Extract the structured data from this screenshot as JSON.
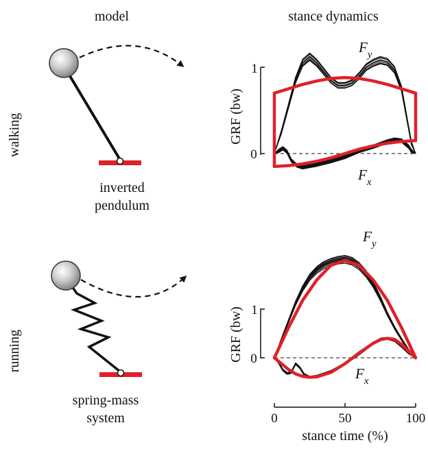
{
  "headers": {
    "model": "model",
    "dynamics": "stance dynamics"
  },
  "rows": {
    "walking": {
      "label": "walking",
      "model_line1": "inverted",
      "model_line2": "pendulum"
    },
    "running": {
      "label": "running",
      "model_line1": "spring-mass",
      "model_line2": "system"
    }
  },
  "axes": {
    "ylabel": "GRF (bw)",
    "xlabel": "stance time (%)",
    "x_ticks": [
      "0",
      "50",
      "100"
    ],
    "y_ticks": [
      "0",
      "1"
    ]
  },
  "force_labels": {
    "fy_main": "F",
    "fy_sub": "y",
    "fx_main": "F",
    "fx_sub": "x"
  },
  "colors": {
    "model_fit": "#e0202a",
    "measured": "#111111",
    "ground": "#e0202a"
  },
  "chart_data": [
    {
      "type": "line",
      "panel": "walking",
      "xlim": [
        0,
        100
      ],
      "ylim": [
        -0.2,
        1.2
      ],
      "series": [
        {
          "role": "measured-Fy",
          "x": [
            0,
            5,
            10,
            15,
            20,
            25,
            30,
            35,
            40,
            45,
            50,
            55,
            60,
            65,
            70,
            75,
            80,
            85,
            90,
            95,
            97,
            100
          ],
          "y": [
            0,
            0.25,
            0.55,
            0.85,
            1.05,
            1.12,
            1.05,
            0.95,
            0.85,
            0.79,
            0.79,
            0.82,
            0.9,
            1.0,
            1.05,
            1.08,
            1.06,
            0.97,
            0.75,
            0.3,
            0.12,
            0
          ]
        },
        {
          "role": "measured-Fx",
          "x": [
            0,
            3,
            6,
            9,
            12,
            16,
            20,
            30,
            40,
            50,
            60,
            70,
            80,
            85,
            90,
            95,
            97,
            100
          ],
          "y": [
            0,
            0.03,
            0.06,
            0.02,
            -0.08,
            -0.14,
            -0.16,
            -0.13,
            -0.09,
            -0.04,
            0.03,
            0.08,
            0.14,
            0.16,
            0.15,
            0.08,
            0.03,
            0
          ]
        },
        {
          "role": "model-Fy",
          "x": [
            0,
            10,
            20,
            30,
            40,
            50,
            60,
            70,
            80,
            90,
            100
          ],
          "y": [
            0.7,
            0.75,
            0.8,
            0.84,
            0.87,
            0.88,
            0.87,
            0.84,
            0.8,
            0.75,
            0.7
          ]
        },
        {
          "role": "model-Fx",
          "x": [
            0,
            10,
            20,
            30,
            40,
            50,
            60,
            70,
            80,
            90,
            100
          ],
          "y": [
            -0.15,
            -0.14,
            -0.12,
            -0.09,
            -0.05,
            0,
            0.05,
            0.09,
            0.12,
            0.14,
            0.15
          ]
        }
      ]
    },
    {
      "type": "line",
      "panel": "running",
      "xlim": [
        0,
        100
      ],
      "ylim": [
        -0.5,
        2.0
      ],
      "series": [
        {
          "role": "measured-Fy",
          "x": [
            0,
            5,
            10,
            15,
            20,
            25,
            30,
            35,
            40,
            45,
            50,
            55,
            60,
            65,
            70,
            75,
            80,
            85,
            90,
            95,
            100
          ],
          "y": [
            0,
            0.38,
            0.75,
            1.12,
            1.42,
            1.65,
            1.8,
            1.9,
            1.96,
            2.0,
            2.02,
            1.98,
            1.88,
            1.72,
            1.5,
            1.22,
            0.9,
            0.62,
            0.38,
            0.16,
            0
          ]
        },
        {
          "role": "measured-Fx",
          "x": [
            0,
            3,
            6,
            9,
            12,
            15,
            18,
            21,
            25,
            30,
            40,
            50,
            60,
            70,
            75,
            80,
            85,
            90,
            95,
            100
          ],
          "y": [
            0,
            -0.1,
            -0.25,
            -0.32,
            -0.3,
            -0.12,
            -0.2,
            -0.34,
            -0.4,
            -0.38,
            -0.28,
            -0.12,
            0.08,
            0.3,
            0.38,
            0.4,
            0.36,
            0.24,
            0.1,
            0
          ]
        },
        {
          "role": "model-Fy",
          "x": [
            0,
            10,
            20,
            30,
            40,
            50,
            60,
            70,
            80,
            90,
            100
          ],
          "y": [
            0,
            0.62,
            1.18,
            1.6,
            1.9,
            2.0,
            1.9,
            1.6,
            1.18,
            0.62,
            0
          ]
        },
        {
          "role": "model-Fx",
          "x": [
            0,
            5,
            10,
            15,
            20,
            25,
            30,
            40,
            50,
            60,
            70,
            75,
            80,
            85,
            90,
            95,
            100
          ],
          "y": [
            0,
            -0.12,
            -0.24,
            -0.33,
            -0.38,
            -0.4,
            -0.39,
            -0.3,
            -0.12,
            0.1,
            0.3,
            0.37,
            0.4,
            0.38,
            0.28,
            0.14,
            0
          ]
        }
      ]
    }
  ]
}
